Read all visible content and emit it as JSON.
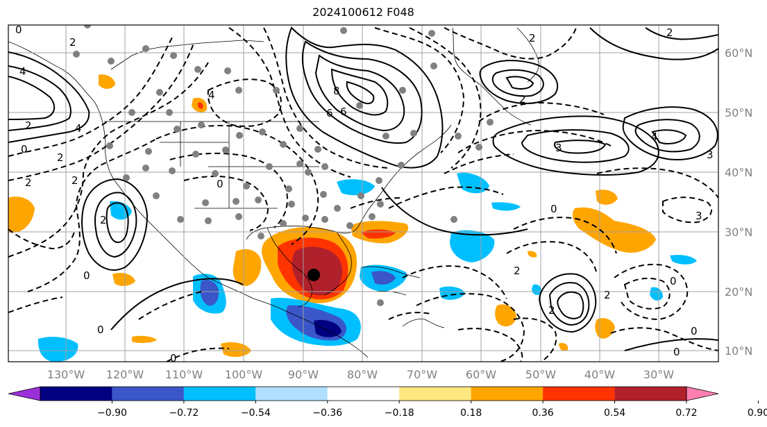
{
  "title": "2024100612 F048",
  "map": {
    "projection": "plate-carree",
    "lon_range": [
      -140,
      -20
    ],
    "lat_range": [
      8,
      65
    ],
    "lon_ticks": [
      -130,
      -120,
      -110,
      -100,
      -90,
      -80,
      -70,
      -60,
      -50,
      -40,
      -30
    ],
    "lon_labels": [
      "130°W",
      "120°W",
      "110°W",
      "100°W",
      "90°W",
      "80°W",
      "70°W",
      "60°W",
      "50°W",
      "40°W",
      "30°W"
    ],
    "lat_ticks": [
      10,
      20,
      30,
      40,
      50,
      60
    ],
    "lat_labels": [
      "10°N",
      "20°N",
      "30°N",
      "40°N",
      "50°N",
      "60°N"
    ],
    "grid": true,
    "storm_center_marker": {
      "lon": -88,
      "lat": 22.5
    }
  },
  "contour_labels": [
    "0",
    "2",
    "4",
    "6",
    "8",
    "2",
    "4",
    "6",
    "0",
    "2",
    "3",
    "4",
    "2",
    "3",
    "0",
    "2",
    "2",
    "0",
    "2",
    "0",
    "0",
    "0",
    "0",
    "0",
    "2",
    "2",
    "4",
    "2",
    "2",
    "0",
    "3",
    "2"
  ],
  "colorbar": {
    "ticks": [
      "−0.90",
      "−0.72",
      "−0.54",
      "−0.36",
      "−0.18",
      "0.18",
      "0.36",
      "0.54",
      "0.72",
      "0.90"
    ],
    "colors": [
      "#9b30d9",
      "#000080",
      "#3a56c8",
      "#00bfff",
      "#b0e0ff",
      "#ffffff",
      "#ffe680",
      "#ffa500",
      "#ff3300",
      "#b0202a",
      "#ff80b0"
    ],
    "extend": "both"
  },
  "colors": {
    "grid": "#a0a0a0",
    "axis_label": "#808080",
    "contour": "#000000"
  }
}
